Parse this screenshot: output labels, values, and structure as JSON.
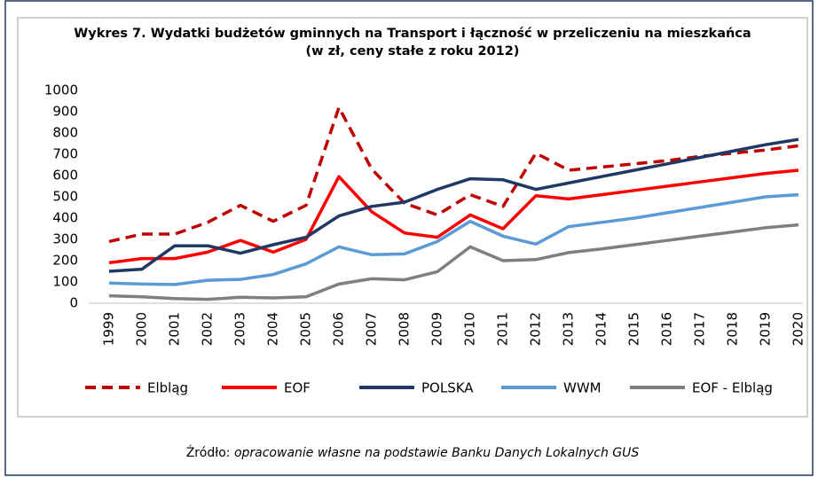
{
  "chart_data": {
    "type": "line",
    "title": "Wykres 7. Wydatki budżetów gminnych na Transport i łączność w przeliczeniu na mieszkańca",
    "subtitle": "(w zł, ceny stałe z roku 2012)",
    "categories": [
      "1999",
      "2000",
      "2001",
      "2002",
      "2003",
      "2004",
      "2005",
      "2006",
      "2007",
      "2008",
      "2009",
      "2010",
      "2011",
      "2012",
      "2013",
      "2014",
      "2015",
      "2016",
      "2017",
      "2018",
      "2019",
      "2020"
    ],
    "ylim": [
      0,
      1000
    ],
    "yticks": [
      0,
      100,
      200,
      300,
      400,
      500,
      600,
      700,
      800,
      900,
      1000
    ],
    "grid": false,
    "legend": "bottom",
    "series": [
      {
        "name": "Elbląg",
        "color": "#c00000",
        "style": "dashed",
        "values": [
          290,
          325,
          325,
          380,
          460,
          385,
          460,
          920,
          630,
          470,
          415,
          510,
          455,
          705,
          625,
          640,
          655,
          670,
          690,
          705,
          720,
          740
        ]
      },
      {
        "name": "EOF",
        "color": "#ff0000",
        "style": "solid",
        "values": [
          190,
          210,
          210,
          240,
          295,
          240,
          300,
          595,
          430,
          330,
          310,
          415,
          350,
          505,
          490,
          510,
          530,
          550,
          570,
          590,
          610,
          625
        ]
      },
      {
        "name": "POLSKA",
        "color": "#1f3864",
        "style": "solid",
        "values": [
          150,
          160,
          270,
          270,
          235,
          275,
          310,
          410,
          455,
          475,
          535,
          585,
          580,
          535,
          565,
          595,
          625,
          655,
          685,
          715,
          745,
          770
        ]
      },
      {
        "name": "WWM",
        "color": "#5b9bd5",
        "style": "solid",
        "values": [
          95,
          90,
          88,
          108,
          112,
          135,
          185,
          265,
          228,
          232,
          290,
          385,
          315,
          278,
          360,
          380,
          400,
          425,
          450,
          475,
          500,
          510
        ]
      },
      {
        "name": "EOF - Elbląg",
        "color": "#7f7f7f",
        "style": "solid",
        "values": [
          35,
          30,
          22,
          18,
          28,
          25,
          30,
          90,
          115,
          110,
          148,
          265,
          200,
          205,
          238,
          255,
          275,
          295,
          315,
          335,
          355,
          368
        ]
      }
    ]
  },
  "source": {
    "prefix": "Źródło:",
    "text": "opracowanie własne na podstawie Banku Danych Lokalnych GUS"
  }
}
